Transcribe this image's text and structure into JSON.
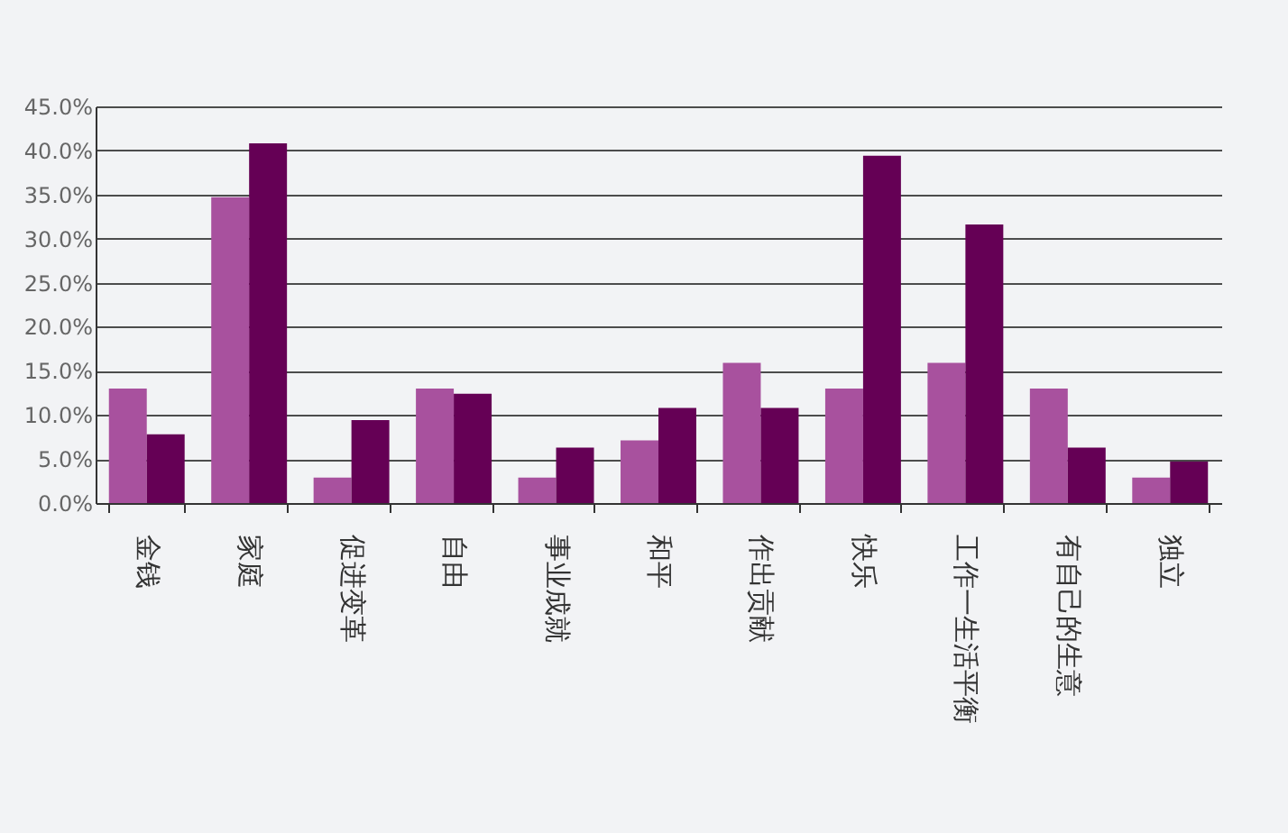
{
  "chart_data": {
    "type": "bar",
    "categories": [
      "金钱",
      "家庭",
      "促进变革",
      "自由",
      "事业成就",
      "和平",
      "作出贡献",
      "快乐",
      "工作一生活平衡",
      "有自己的生意",
      "独立"
    ],
    "series": [
      {
        "color": "#a8519e",
        "values": [
          13.0,
          34.7,
          2.9,
          13.0,
          2.9,
          7.1,
          15.9,
          13.0,
          15.9,
          13.0,
          2.9
        ]
      },
      {
        "color": "#650055",
        "values": [
          7.8,
          40.8,
          9.4,
          12.4,
          6.3,
          10.8,
          10.8,
          39.4,
          31.6,
          6.3,
          4.7
        ]
      }
    ],
    "ylim": [
      0,
      45
    ],
    "yticks": [
      {
        "value": 0,
        "label": "0.0%"
      },
      {
        "value": 5,
        "label": "5.0%"
      },
      {
        "value": 10,
        "label": "10.0%"
      },
      {
        "value": 15,
        "label": "15.0%"
      },
      {
        "value": 20,
        "label": "20.0%"
      },
      {
        "value": 25,
        "label": "25.0%"
      },
      {
        "value": 30,
        "label": "30.0%"
      },
      {
        "value": 35,
        "label": "35.0%"
      },
      {
        "value": 40,
        "label": "40.0%"
      },
      {
        "value": 45,
        "label": "45.0%"
      }
    ],
    "grid": "y",
    "legend": false
  }
}
